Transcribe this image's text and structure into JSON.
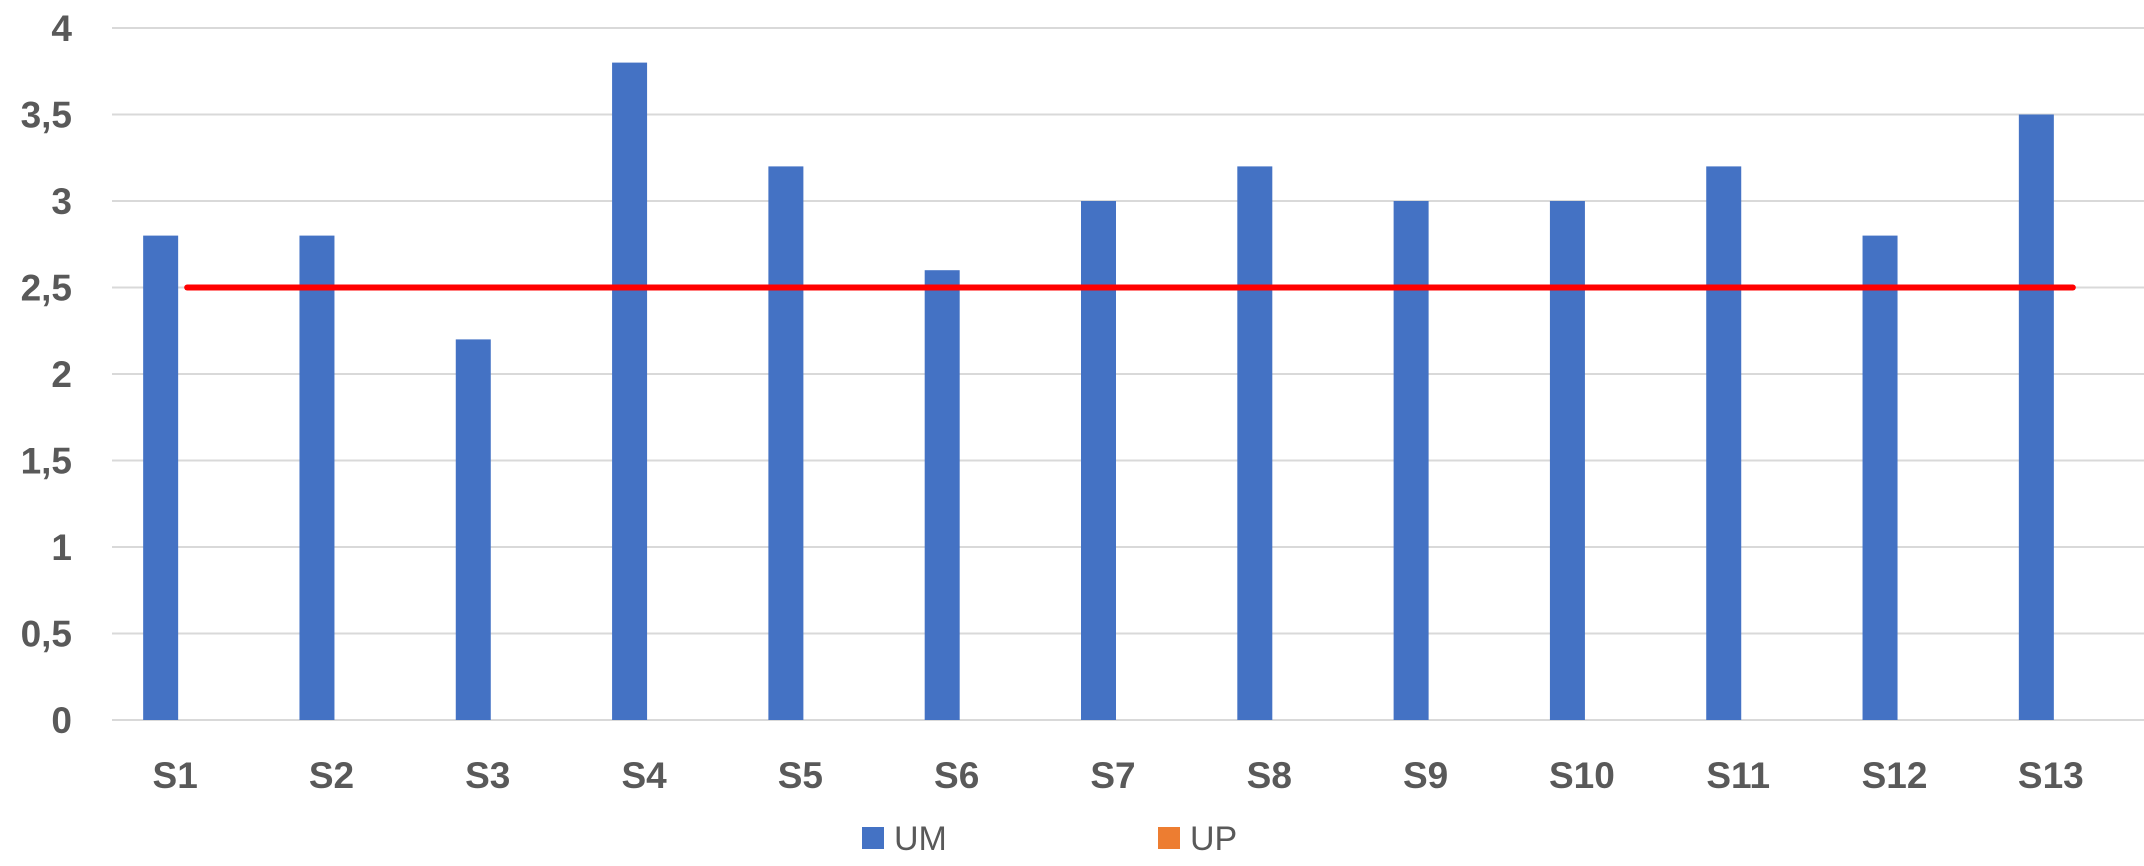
{
  "chart_data": {
    "type": "bar",
    "categories": [
      "S1",
      "S2",
      "S3",
      "S4",
      "S5",
      "S6",
      "S7",
      "S8",
      "S9",
      "S10",
      "S11",
      "S12",
      "S13"
    ],
    "series": [
      {
        "name": "UM",
        "color": "#4472C4",
        "values": [
          2.8,
          2.8,
          2.2,
          3.8,
          3.2,
          2.6,
          3.0,
          3.2,
          3.0,
          3.0,
          3.2,
          2.8,
          3.5
        ]
      },
      {
        "name": "UP",
        "color": "#ED7D31",
        "values": [
          0,
          0,
          0,
          0,
          0,
          0,
          0,
          0,
          0,
          0,
          0,
          0,
          0
        ]
      }
    ],
    "reference_line": {
      "value": 2.5,
      "color": "#FF0000"
    },
    "ylim": [
      0,
      4
    ],
    "yticks": [
      "0",
      "0,5",
      "1",
      "1,5",
      "2",
      "2,5",
      "3",
      "3,5",
      "4"
    ],
    "grid": true,
    "legend_position": "bottom-center",
    "title": "",
    "xlabel": "",
    "ylabel": ""
  }
}
